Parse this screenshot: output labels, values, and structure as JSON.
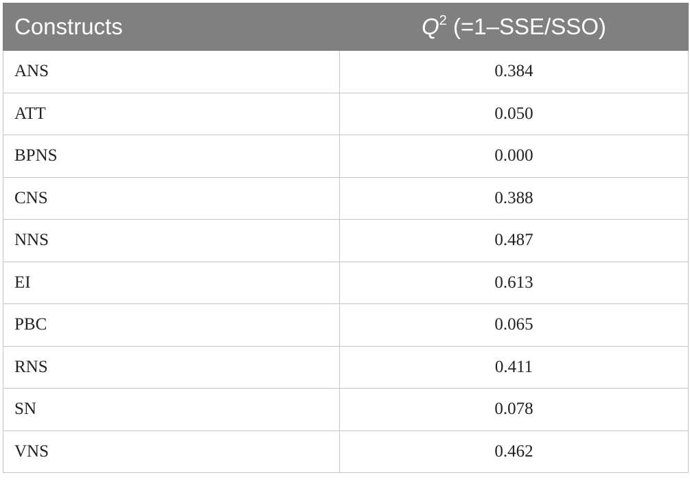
{
  "table": {
    "header": [
      "Constructs",
      {
        "symbol": "Q",
        "superscript": "2",
        "text": "(=1–SSE/SSO)"
      }
    ],
    "rows": [
      [
        "ANS",
        "0.384"
      ],
      [
        "ATT",
        "0.050"
      ],
      [
        "BPNS",
        "0.000"
      ],
      [
        "CNS",
        "0.388"
      ],
      [
        "NNS",
        "0.487"
      ],
      [
        "EI",
        "0.613"
      ],
      [
        "PBC",
        "0.065"
      ],
      [
        "RNS",
        "0.411"
      ],
      [
        "SN",
        "0.078"
      ],
      [
        "VNS",
        "0.462"
      ]
    ]
  }
}
